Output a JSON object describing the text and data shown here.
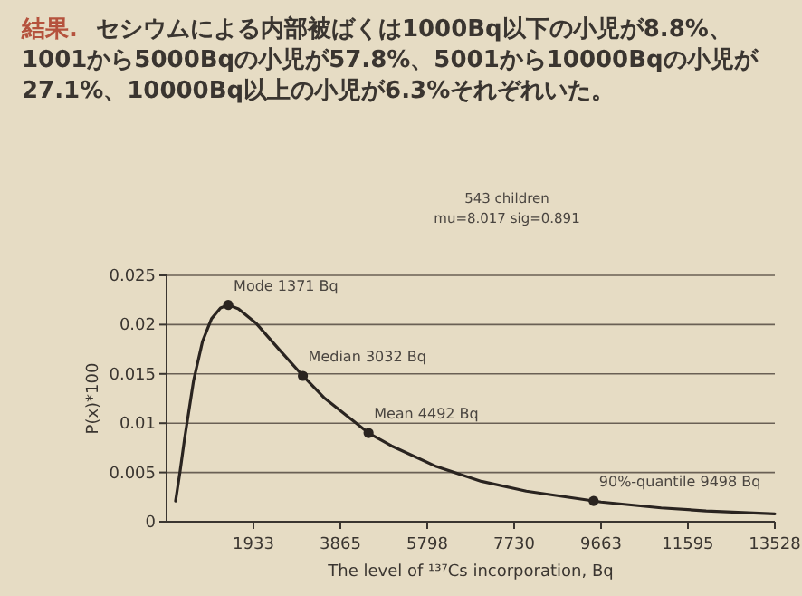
{
  "chart_data": {
    "type": "line",
    "title": "結果.",
    "subtitle": "セシウムによる内部被ばくは1000Bq以下の小児が8.8%、1001から5000Bqの小児が57.8%、5001から10000Bqの小児が27.1%、10000Bq以上の小児が6.3%それぞれいた。",
    "xlabel": "The level of ¹³⁷Cs incorporation, Bq",
    "ylabel": "P(x)*100",
    "annotations": [
      "543 children",
      "mu=8.017 sig=0.891",
      {
        "text": "Mode 1371 Bq",
        "x": 1371,
        "y": 0.022
      },
      {
        "text": "Median 3032 Bq",
        "x": 3032,
        "y": 0.0148
      },
      {
        "text": "Mean 4492 Bq",
        "x": 4492,
        "y": 0.009
      },
      {
        "text": "90%-quantile 9498 Bq",
        "x": 9498,
        "y": 0.0021
      }
    ],
    "series": [
      {
        "color": "#2a2420",
        "x": [
          200,
          300,
          400,
          600,
          800,
          1000,
          1200,
          1371,
          1600,
          2000,
          2500,
          3032,
          3500,
          4492,
          5000,
          6000,
          7000,
          8000,
          9663,
          11000,
          12000,
          13528
        ],
        "values": [
          0.0021,
          0.0051,
          0.0084,
          0.0143,
          0.0183,
          0.0206,
          0.0217,
          0.022,
          0.0216,
          0.0201,
          0.0175,
          0.0148,
          0.0126,
          0.009,
          0.0077,
          0.0056,
          0.0041,
          0.0031,
          0.002,
          0.0014,
          0.0011,
          0.0008
        ]
      },
      {
        "type": "scatter",
        "marker": "circle",
        "color": "#2a2420",
        "x": [
          1371,
          3032,
          4492,
          9498
        ],
        "values": [
          0.022,
          0.0148,
          0.009,
          0.0021
        ]
      }
    ],
    "xlim": [
      0,
      13528
    ],
    "ylim": [
      0,
      0.025
    ],
    "xticks": [
      1933,
      3865,
      5798,
      7730,
      9663,
      11595,
      13528
    ],
    "yticks": [
      0,
      0.005,
      0.01,
      0.015,
      0.02,
      0.025
    ],
    "grid": "y"
  }
}
